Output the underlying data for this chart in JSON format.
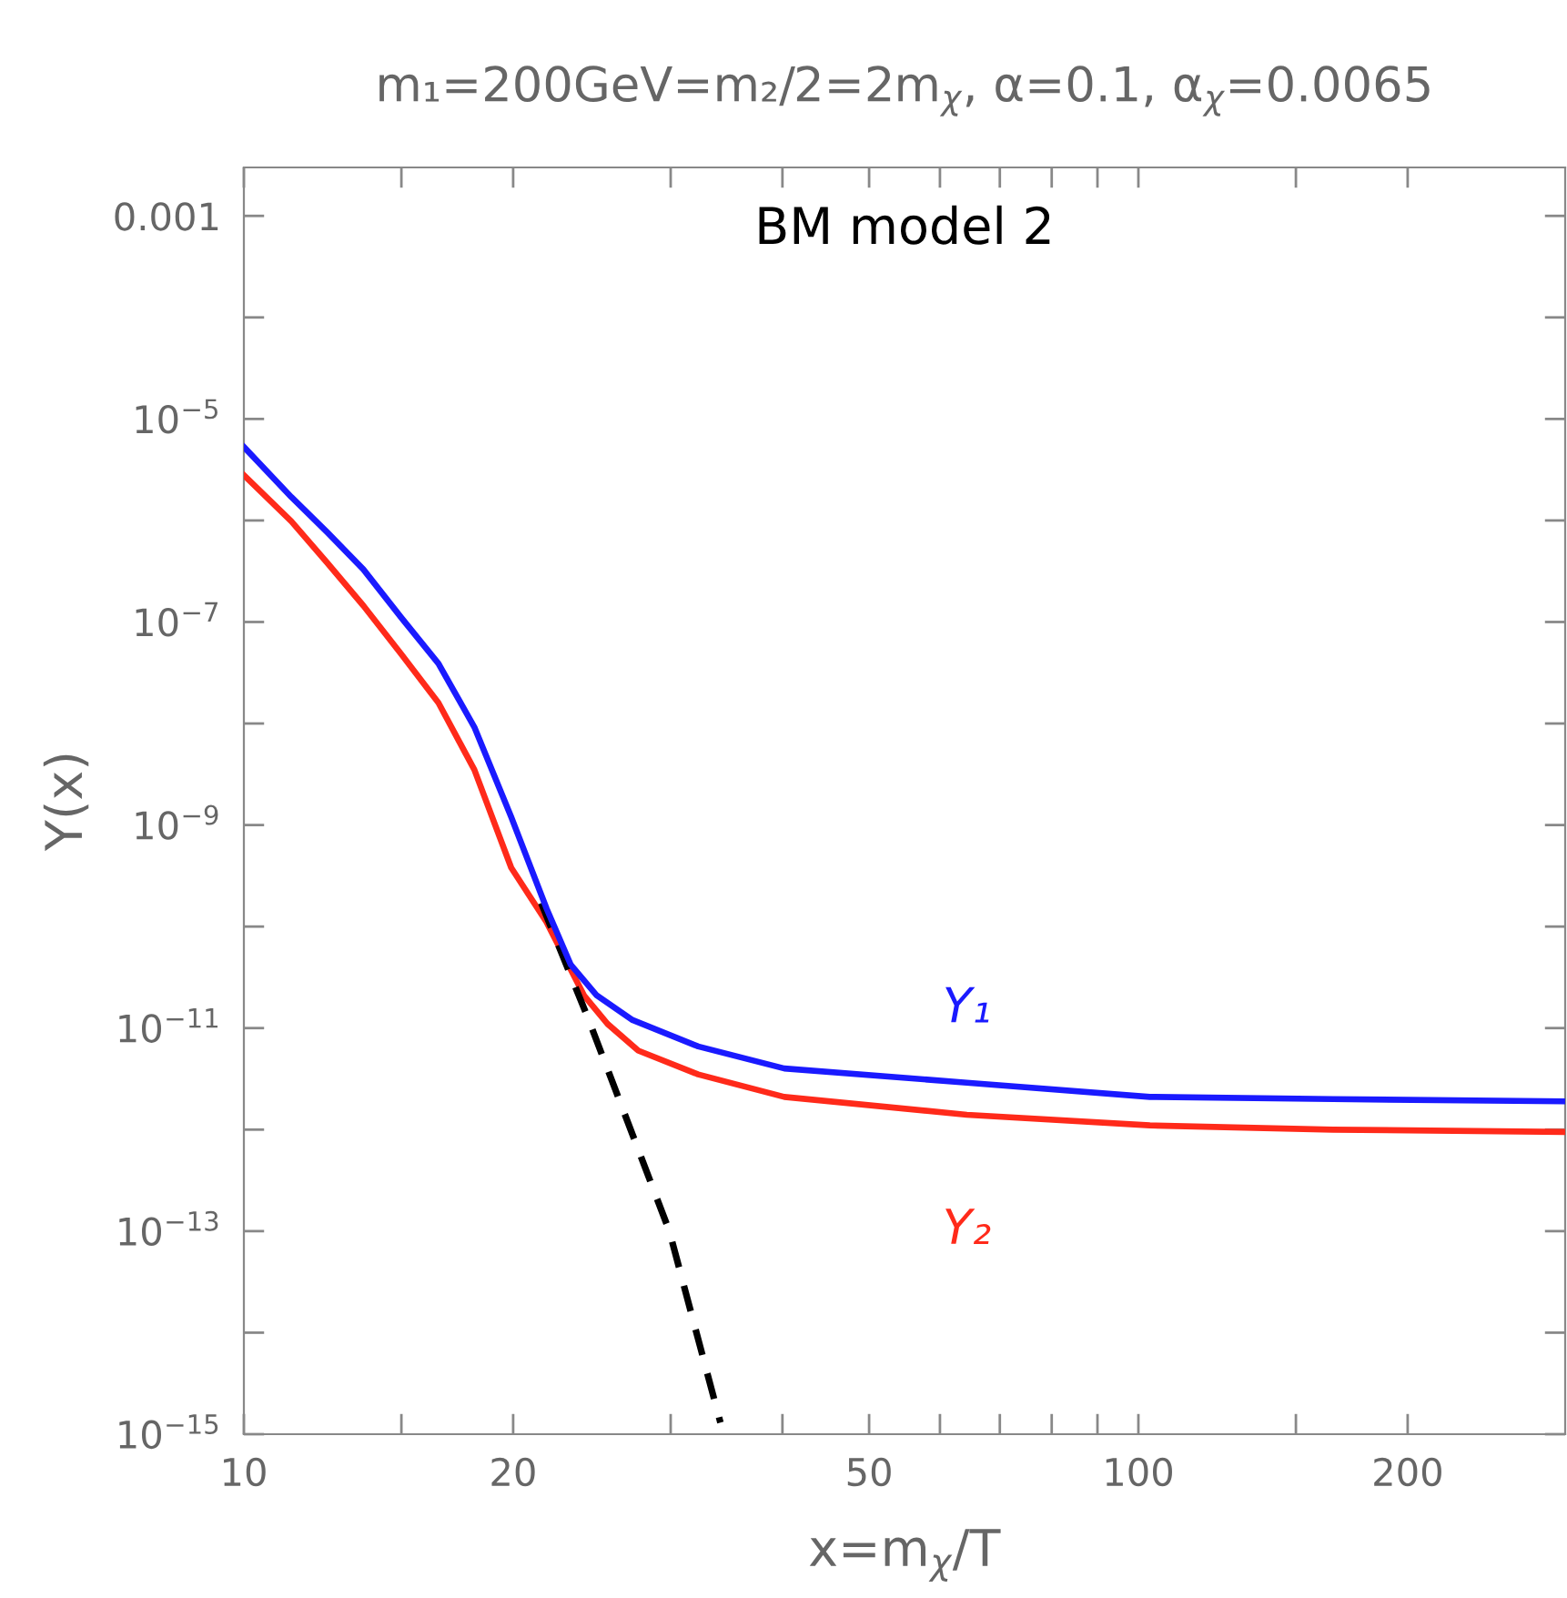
{
  "chart_data": {
    "type": "line",
    "title": "m₁=200GeV=m₂/2=2m$_{χ}$, α=0.1, α$_{χ}$=0.0065",
    "xlabel": "x=m$_{χ}$/T",
    "ylabel": "Y(x)",
    "annotations": [
      "BM model 2"
    ],
    "log": "xy",
    "grid": false,
    "legend": false,
    "marker": "none",
    "xlim": [
      10,
      300
    ],
    "ylim": [
      1e-15,
      0.003
    ],
    "xticks": [
      10,
      {
        "value": 15,
        "label": null
      },
      20,
      {
        "value": 30,
        "label": null
      },
      {
        "value": 40,
        "label": null
      },
      50,
      {
        "value": 60,
        "label": null
      },
      {
        "value": 70,
        "label": null
      },
      {
        "value": 80,
        "label": null
      },
      {
        "value": 90,
        "label": null
      },
      100,
      {
        "value": 150,
        "label": null
      },
      200
    ],
    "yticks": [
      {
        "value": 1e-15,
        "label": "10$^{−15}$"
      },
      {
        "value": 1e-14,
        "label": null
      },
      {
        "value": 1e-13,
        "label": "10$^{−13}$"
      },
      {
        "value": 1e-12,
        "label": null
      },
      {
        "value": 1e-11,
        "label": "10$^{−11}$"
      },
      {
        "value": 1e-10,
        "label": null
      },
      {
        "value": 1e-09,
        "label": "10$^{−9}$"
      },
      {
        "value": 1e-08,
        "label": null
      },
      {
        "value": 1e-07,
        "label": "10$^{−7}$"
      },
      {
        "value": 1e-06,
        "label": null
      },
      {
        "value": 1e-05,
        "label": "10$^{−5}$"
      },
      {
        "value": 0.0001,
        "label": null
      },
      0.001
    ],
    "series": [
      {
        "name": "Y₁",
        "color": "#1a1aff",
        "line_style": "solid",
        "x": [
          10,
          11.3,
          12.4,
          13.6,
          15.0,
          16.5,
          18.1,
          19.9,
          21.8,
          23.2,
          24.8,
          27.2,
          32.2,
          40.2,
          64.3,
          103,
          165,
          300
        ],
        "values": [
          5.3e-06,
          1.7e-06,
          7.6e-07,
          3.3e-07,
          1.1e-07,
          3.9e-08,
          9.2e-09,
          1.2e-09,
          1.5e-10,
          4.2e-11,
          2.1e-11,
          1.2e-11,
          6.6e-12,
          4e-12,
          2.9e-12,
          2.1e-12,
          2e-12,
          1.9e-12
        ]
      },
      {
        "name": "Y₂",
        "color": "#ff2a1a",
        "line_style": "solid",
        "x": [
          10,
          11.3,
          12.4,
          13.6,
          15.0,
          16.5,
          18.1,
          19.9,
          21.8,
          24.0,
          25.5,
          27.6,
          32.2,
          40.2,
          64.3,
          103,
          165,
          300
        ],
        "values": [
          2.8e-06,
          9.8e-07,
          3.8e-07,
          1.45e-07,
          4.8e-08,
          1.6e-08,
          3.5e-09,
          3.8e-10,
          1.1e-10,
          2.1e-11,
          1.1e-11,
          6e-12,
          3.5e-12,
          2.1e-12,
          1.4e-12,
          1.1e-12,
          1e-12,
          9.5e-13
        ]
      },
      {
        "color": "#000000",
        "line_style": "dashed",
        "x": [
          21.5,
          24.3,
          29.9,
          34.1
        ],
        "values": [
          1.7e-10,
          1.2e-11,
          1e-13,
          1.3e-15
        ]
      }
    ]
  }
}
